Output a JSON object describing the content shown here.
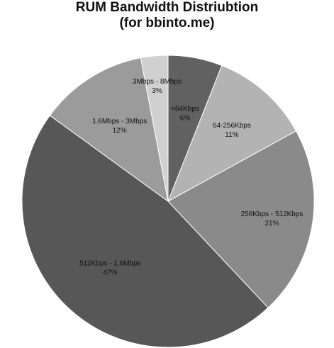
{
  "chart_data": {
    "type": "pie",
    "title": [
      "RUM Bandwidth Distriubtion",
      "(for bbinto.me)"
    ],
    "slices": [
      {
        "name": "<64Kbps",
        "value": 6,
        "label": "6%",
        "color": "#616161"
      },
      {
        "name": "64-256Kbps",
        "value": 11,
        "label": "11%",
        "color": "#b3b3b3"
      },
      {
        "name": "256Kbps - 512Kbps",
        "value": 21,
        "label": "21%",
        "color": "#8a8a8a"
      },
      {
        "name": "512Kbps - 1.6Mbps",
        "value": 47,
        "label": "47%",
        "color": "#575757"
      },
      {
        "name": "1.6Mbps - 3Mbps",
        "value": 12,
        "label": "12%",
        "color": "#9b9b9b"
      },
      {
        "name": "3Mbps - 8Mbps",
        "value": 3,
        "label": "3%",
        "color": "#d0d0d0"
      }
    ],
    "start_angle": "12 o'clock",
    "direction": "clockwise",
    "legend": "none (labels on slices)"
  }
}
